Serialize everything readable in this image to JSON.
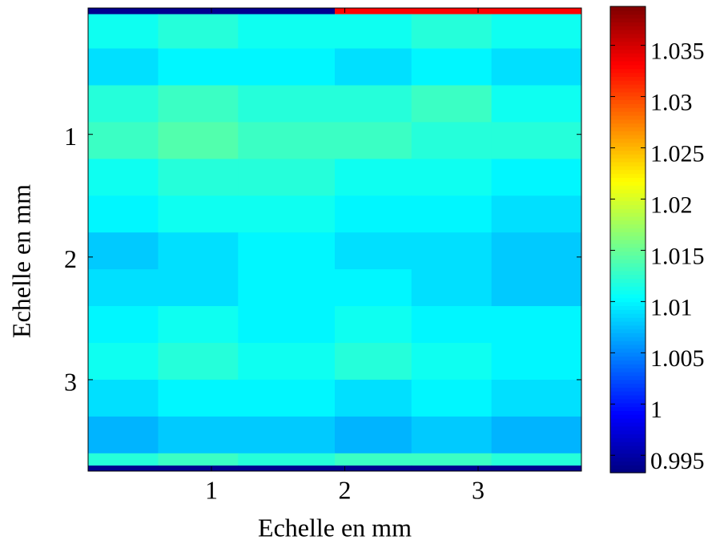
{
  "chart_data": {
    "type": "heatmap",
    "x_label": "Echelle en mm",
    "y_label": "Echelle en mm",
    "colormap": "jet",
    "xlim": [
      0.075,
      3.775
    ],
    "ylim": [
      -0.03,
      3.745
    ],
    "y_reversed": true,
    "xticks": [
      1,
      2,
      3
    ],
    "yticks": [
      1,
      2,
      3
    ],
    "x_edges": [
      0.075,
      0.6,
      1.2,
      1.925,
      2.5,
      3.1,
      3.775
    ],
    "y_edges": [
      -0.03,
      0.02,
      0.3,
      0.6,
      0.9,
      1.2,
      1.5,
      1.8,
      2.1,
      2.4,
      2.7,
      3.0,
      3.3,
      3.6,
      3.7,
      3.745
    ],
    "z": [
      [
        0.994,
        0.994,
        0.994,
        1.033,
        1.033,
        1.033
      ],
      [
        1.011,
        1.012,
        1.011,
        1.011,
        1.012,
        1.011
      ],
      [
        1.009,
        1.01,
        1.01,
        1.009,
        1.01,
        1.009
      ],
      [
        1.012,
        1.013,
        1.012,
        1.012,
        1.013,
        1.011
      ],
      [
        1.013,
        1.014,
        1.013,
        1.013,
        1.012,
        1.012
      ],
      [
        1.011,
        1.012,
        1.012,
        1.011,
        1.011,
        1.01
      ],
      [
        1.01,
        1.011,
        1.011,
        1.01,
        1.01,
        1.009
      ],
      [
        1.008,
        1.009,
        1.01,
        1.009,
        1.009,
        1.008
      ],
      [
        1.009,
        1.009,
        1.01,
        1.01,
        1.009,
        1.008
      ],
      [
        1.01,
        1.011,
        1.01,
        1.011,
        1.01,
        1.01
      ],
      [
        1.011,
        1.012,
        1.011,
        1.012,
        1.011,
        1.01
      ],
      [
        1.009,
        1.01,
        1.01,
        1.009,
        1.01,
        1.009
      ],
      [
        1.007,
        1.008,
        1.008,
        1.007,
        1.008,
        1.007
      ],
      [
        1.012,
        1.013,
        1.012,
        1.013,
        1.013,
        1.012
      ],
      [
        0.994,
        0.994,
        0.994,
        0.994,
        0.994,
        0.994
      ]
    ],
    "clim": [
      0.9933,
      1.0388
    ],
    "cticks": [
      0.995,
      1,
      1.005,
      1.01,
      1.015,
      1.02,
      1.025,
      1.03,
      1.035
    ]
  }
}
